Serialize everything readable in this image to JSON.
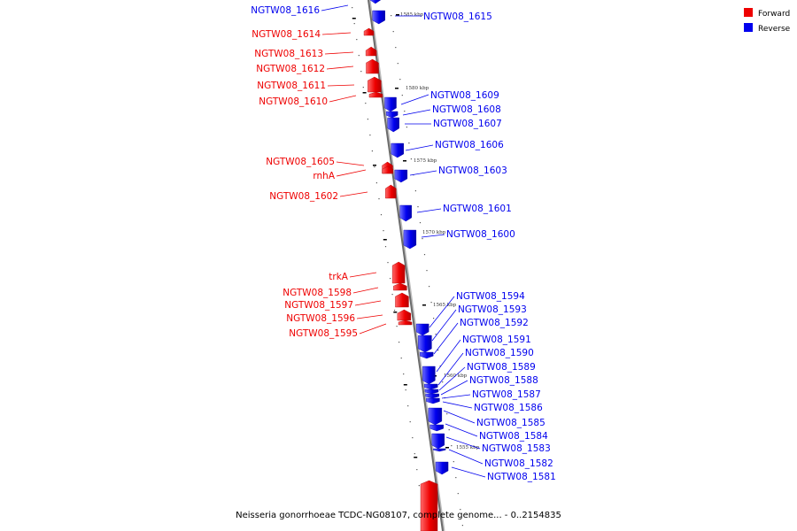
{
  "legend": {
    "forward_label": "Forward",
    "reverse_label": "Reverse",
    "forward_color": "#ee0000",
    "reverse_color": "#0000ee"
  },
  "caption": "Neisseria gonorrhoeae TCDC-NG08107, complete genome... - 0..2154835",
  "axis_ticks": [
    "1585 kbp",
    "1580 kbp",
    "1575 kbp",
    "1570 kbp",
    "1565 kbp",
    "1560 kbp",
    "1555 kbp"
  ],
  "genes": [
    {
      "name": "NGTW08_1616",
      "strand": "reverse"
    },
    {
      "name": "NGTW08_1615",
      "strand": "reverse"
    },
    {
      "name": "NGTW08_1614",
      "strand": "forward"
    },
    {
      "name": "NGTW08_1613",
      "strand": "forward"
    },
    {
      "name": "NGTW08_1612",
      "strand": "forward"
    },
    {
      "name": "NGTW08_1611",
      "strand": "forward"
    },
    {
      "name": "NGTW08_1610",
      "strand": "forward"
    },
    {
      "name": "NGTW08_1609",
      "strand": "reverse"
    },
    {
      "name": "NGTW08_1608",
      "strand": "reverse"
    },
    {
      "name": "NGTW08_1607",
      "strand": "reverse"
    },
    {
      "name": "NGTW08_1606",
      "strand": "reverse"
    },
    {
      "name": "NGTW08_1605",
      "strand": "forward"
    },
    {
      "name": "rnhA",
      "strand": "forward"
    },
    {
      "name": "NGTW08_1603",
      "strand": "reverse"
    },
    {
      "name": "NGTW08_1602",
      "strand": "forward"
    },
    {
      "name": "NGTW08_1601",
      "strand": "reverse"
    },
    {
      "name": "NGTW08_1600",
      "strand": "reverse"
    },
    {
      "name": "trkA",
      "strand": "forward"
    },
    {
      "name": "NGTW08_1598",
      "strand": "forward"
    },
    {
      "name": "NGTW08_1597",
      "strand": "forward"
    },
    {
      "name": "NGTW08_1596",
      "strand": "forward"
    },
    {
      "name": "NGTW08_1595",
      "strand": "forward"
    },
    {
      "name": "NGTW08_1594",
      "strand": "reverse"
    },
    {
      "name": "NGTW08_1593",
      "strand": "reverse"
    },
    {
      "name": "NGTW08_1592",
      "strand": "reverse"
    },
    {
      "name": "NGTW08_1591",
      "strand": "reverse"
    },
    {
      "name": "NGTW08_1590",
      "strand": "reverse"
    },
    {
      "name": "NGTW08_1589",
      "strand": "reverse"
    },
    {
      "name": "NGTW08_1588",
      "strand": "reverse"
    },
    {
      "name": "NGTW08_1587",
      "strand": "reverse"
    },
    {
      "name": "NGTW08_1586",
      "strand": "reverse"
    },
    {
      "name": "NGTW08_1585",
      "strand": "reverse"
    },
    {
      "name": "NGTW08_1584",
      "strand": "reverse"
    },
    {
      "name": "NGTW08_1583",
      "strand": "reverse"
    },
    {
      "name": "NGTW08_1582",
      "strand": "reverse"
    },
    {
      "name": "NGTW08_1581",
      "strand": "reverse"
    }
  ]
}
